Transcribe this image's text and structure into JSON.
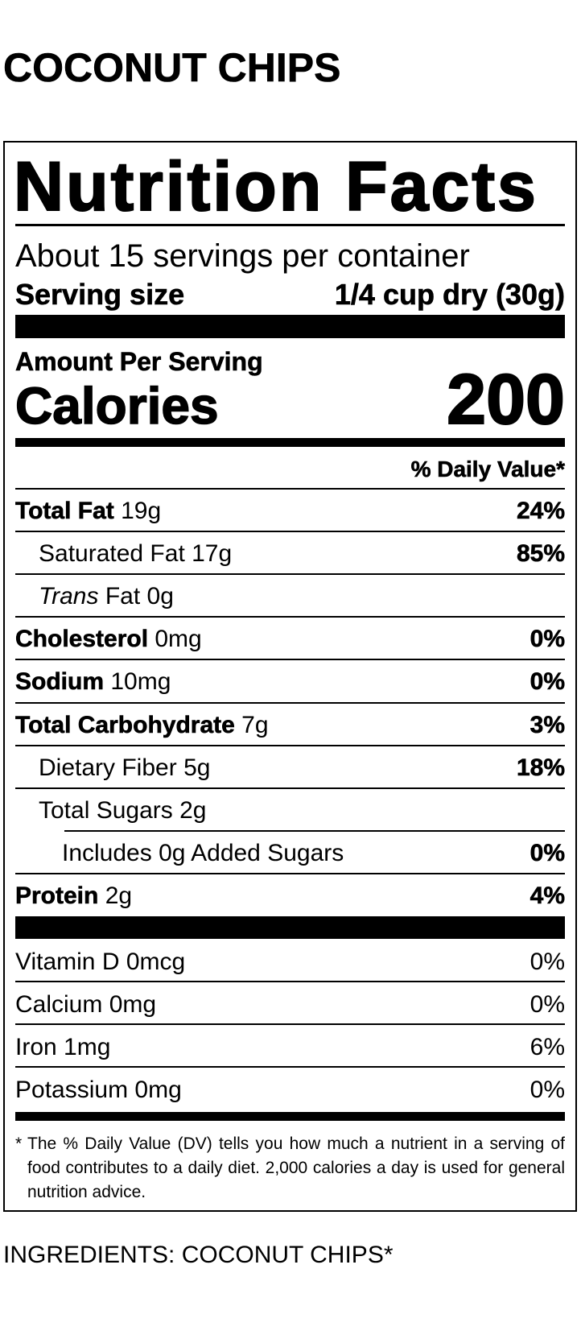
{
  "title": "COCONUT CHIPS",
  "label": {
    "heading": "Nutrition Facts",
    "servings": "About 15 servings per container",
    "serving_size_label": "Serving size",
    "serving_size_value": "1/4 cup dry (30g)",
    "amount_per_serving": "Amount Per Serving",
    "calories_label": "Calories",
    "calories_value": "200",
    "daily_value_header": "% Daily Value*",
    "nutrients": [
      {
        "name": "Total Fat",
        "amount": "19g",
        "dv": "24%"
      },
      {
        "name": "Saturated Fat",
        "amount": "17g",
        "dv": "85%"
      },
      {
        "name_italic": "Trans",
        "name": "Fat",
        "amount": "0g"
      },
      {
        "name": "Cholesterol",
        "amount": "0mg",
        "dv": "0%"
      },
      {
        "name": "Sodium",
        "amount": "10mg",
        "dv": "0%"
      },
      {
        "name": "Total Carbohydrate",
        "amount": "7g",
        "dv": "3%"
      },
      {
        "name": "Dietary Fiber",
        "amount": "5g",
        "dv": "18%"
      },
      {
        "name": "Total Sugars",
        "amount": "2g"
      },
      {
        "name": "Includes 0g Added Sugars",
        "dv": "0%"
      },
      {
        "name": "Protein",
        "amount": "2g",
        "dv": "4%"
      }
    ],
    "vitamins": [
      {
        "name": "Vitamin D",
        "amount": "0mcg",
        "dv": "0%"
      },
      {
        "name": "Calcium",
        "amount": "0mg",
        "dv": "0%"
      },
      {
        "name": "Iron",
        "amount": "1mg",
        "dv": "6%"
      },
      {
        "name": "Potassium",
        "amount": "0mg",
        "dv": "0%"
      }
    ],
    "footnote_marker": "*",
    "footnote": "The % Daily Value (DV) tells you how much a nutrient in a serving of food contributes to a daily diet. 2,000 calories a day is used for general nutrition advice."
  },
  "ingredients": "INGREDIENTS: COCONUT CHIPS*"
}
